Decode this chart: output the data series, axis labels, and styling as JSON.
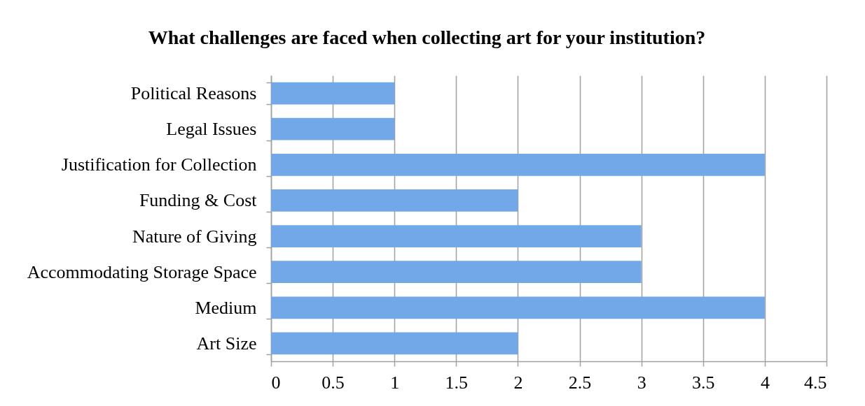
{
  "chart_data": {
    "type": "bar",
    "orientation": "horizontal",
    "title": "What challenges are faced when collecting art for your institution?",
    "categories": [
      "Political Reasons",
      "Legal Issues",
      "Justification for Collection",
      "Funding & Cost",
      "Nature of Giving",
      "Accommodating Storage Space",
      "Medium",
      "Art Size"
    ],
    "values": [
      1,
      1,
      4,
      2,
      3,
      3,
      4,
      2
    ],
    "color": "#72a8e8",
    "xlim": [
      0,
      4.5
    ],
    "xticks": [
      0,
      0.5,
      1,
      1.5,
      2,
      2.5,
      3,
      3.5,
      4,
      4.5
    ],
    "grid": "x"
  }
}
